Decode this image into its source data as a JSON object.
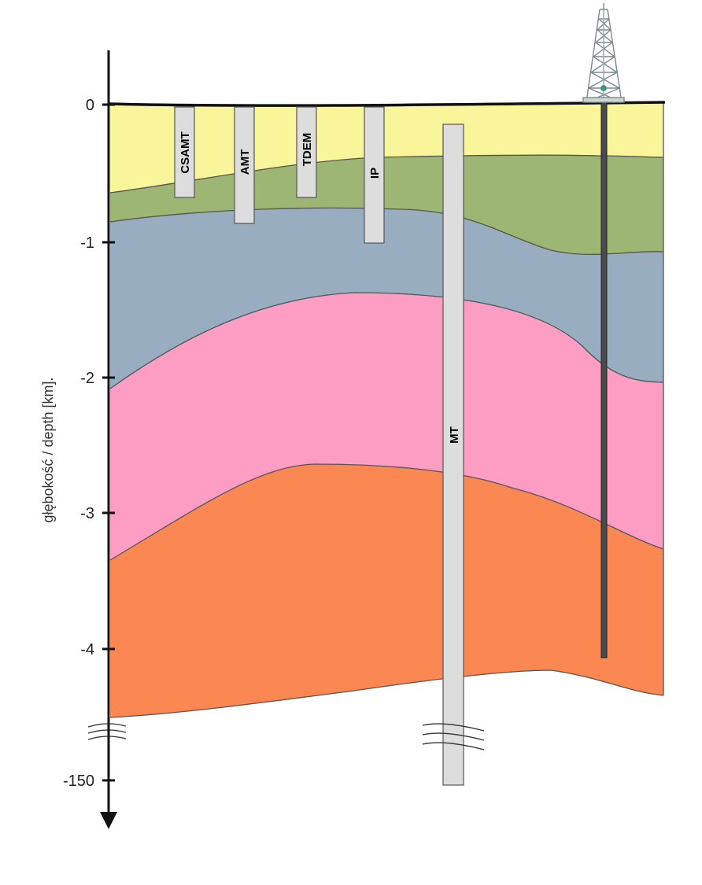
{
  "axis": {
    "title": "głębokość / depth [km].",
    "ticks": [
      "0",
      "-1",
      "-2",
      "-3",
      "-4",
      "-150"
    ]
  },
  "methods": [
    {
      "label": "CSAMT",
      "max_depth_km": 0.67
    },
    {
      "label": "AMT",
      "max_depth_km": 0.87
    },
    {
      "label": "TDEM",
      "max_depth_km": 0.67
    },
    {
      "label": "IP",
      "max_depth_km": 1.0
    },
    {
      "label": "MT",
      "max_depth_km": 150
    }
  ],
  "layer_colors": {
    "layer_1": "#f9f59b",
    "layer_2": "#9db673",
    "layer_3": "#98aec0",
    "layer_4": "#fd9dc3",
    "layer_5": "#fb8752"
  },
  "well_color": "#4a4a4a"
}
